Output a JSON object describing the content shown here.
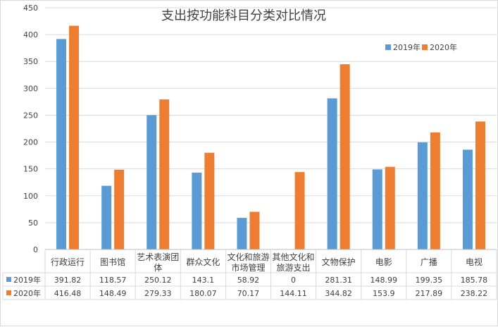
{
  "chart_data": {
    "type": "bar",
    "title": "支出按功能科目分类对比情况",
    "categories": [
      [
        "行政运行"
      ],
      [
        "图书馆"
      ],
      [
        "艺术表演团",
        "体"
      ],
      [
        "群众文化"
      ],
      [
        "文化和旅游",
        "市场管理"
      ],
      [
        "其他文化和",
        "旅游支出"
      ],
      [
        "文物保护"
      ],
      [
        "电影"
      ],
      [
        "广播"
      ],
      [
        "电视"
      ]
    ],
    "series": [
      {
        "name": "2019年",
        "color": "#5b9bd5",
        "values": [
          391.82,
          118.57,
          250.12,
          143.1,
          58.92,
          0,
          281.31,
          148.99,
          199.35,
          185.78
        ],
        "labels": [
          "391.82",
          "118.57",
          "250.12",
          "143.1",
          "58.92",
          "0",
          "281.31",
          "148.99",
          "199.35",
          "185.78"
        ]
      },
      {
        "name": "2020年",
        "color": "#ed7d31",
        "values": [
          416.48,
          148.49,
          279.33,
          180.07,
          70.17,
          144.11,
          344.82,
          153.9,
          217.89,
          238.22
        ],
        "labels": [
          "416.48",
          "148.49",
          "279.33",
          "180.07",
          "70.17",
          "144.11",
          "344.82",
          "153.9",
          "217.89",
          "238.22"
        ]
      }
    ],
    "ylim": [
      0,
      450
    ],
    "yticks": [
      "0",
      "50",
      "100",
      "150",
      "200",
      "250",
      "300",
      "350",
      "400",
      "450"
    ],
    "grid": true,
    "legend": "top-right",
    "data_table": true
  }
}
